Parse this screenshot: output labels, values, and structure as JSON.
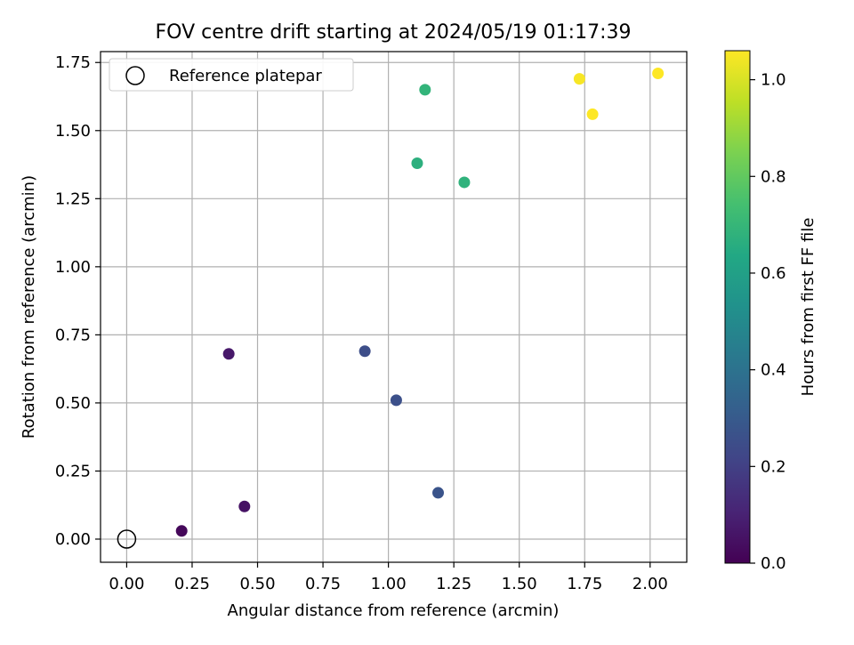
{
  "chart_data": {
    "type": "scatter",
    "title": "FOV centre drift starting at 2024/05/19 01:17:39",
    "xlabel": "Angular distance from reference (arcmin)",
    "ylabel": "Rotation from reference (arcmin)",
    "xlim": [
      -0.1,
      2.14
    ],
    "ylim": [
      -0.085,
      1.79
    ],
    "xticks": [
      0.0,
      0.25,
      0.5,
      0.75,
      1.0,
      1.25,
      1.5,
      1.75,
      2.0
    ],
    "xtick_labels": [
      "0.00",
      "0.25",
      "0.50",
      "0.75",
      "1.00",
      "1.25",
      "1.50",
      "1.75",
      "2.00"
    ],
    "yticks": [
      0.0,
      0.25,
      0.5,
      0.75,
      1.0,
      1.25,
      1.5,
      1.75
    ],
    "ytick_labels": [
      "0.00",
      "0.25",
      "0.50",
      "0.75",
      "1.00",
      "1.25",
      "1.50",
      "1.75"
    ],
    "grid": true,
    "legend": {
      "position": "top-left",
      "entries": [
        "Reference platepar"
      ]
    },
    "reference_point": {
      "x": 0.0,
      "y": 0.0,
      "label": "Reference platepar"
    },
    "points": [
      {
        "x": 0.21,
        "y": 0.03,
        "hours": 0.02
      },
      {
        "x": 0.45,
        "y": 0.12,
        "hours": 0.05
      },
      {
        "x": 0.39,
        "y": 0.68,
        "hours": 0.07
      },
      {
        "x": 0.91,
        "y": 0.69,
        "hours": 0.25
      },
      {
        "x": 1.03,
        "y": 0.51,
        "hours": 0.26
      },
      {
        "x": 1.19,
        "y": 0.17,
        "hours": 0.27
      },
      {
        "x": 1.11,
        "y": 1.38,
        "hours": 0.67
      },
      {
        "x": 1.29,
        "y": 1.31,
        "hours": 0.68
      },
      {
        "x": 1.14,
        "y": 1.65,
        "hours": 0.69
      },
      {
        "x": 1.73,
        "y": 1.69,
        "hours": 1.05
      },
      {
        "x": 1.78,
        "y": 1.56,
        "hours": 1.06
      },
      {
        "x": 2.03,
        "y": 1.71,
        "hours": 1.06
      }
    ],
    "colorbar": {
      "label": "Hours from first FF file",
      "range": [
        0.0,
        1.06
      ],
      "colormap": "viridis",
      "ticks": [
        0.0,
        0.2,
        0.4,
        0.6,
        0.8,
        1.0
      ],
      "tick_labels": [
        "0.0",
        "0.2",
        "0.4",
        "0.6",
        "0.8",
        "1.0"
      ]
    }
  }
}
